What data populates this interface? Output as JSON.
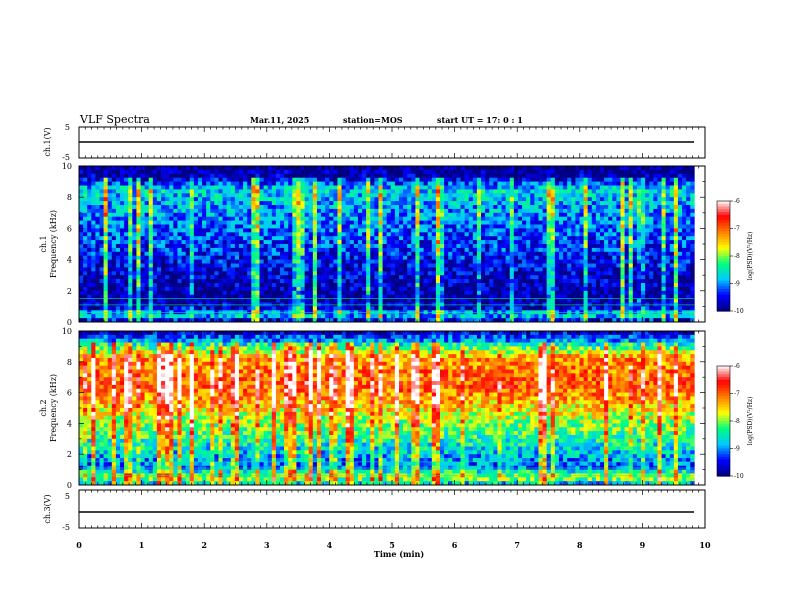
{
  "header": {
    "title": "VLF Spectra",
    "date": "Mar.11, 2025",
    "station": "station=MOS",
    "start": "start UT = 17: 0 : 1"
  },
  "chart_data": [
    {
      "type": "line",
      "title": "",
      "ylabel": "ch.1(V)",
      "yticks": [
        "5",
        "-5"
      ],
      "ylim": [
        -5,
        5
      ],
      "series": [
        {
          "x": [
            0,
            9.83
          ],
          "y": [
            0,
            0
          ]
        }
      ]
    },
    {
      "type": "heatmap",
      "ylabel": "ch.1\nFrequency (kHz)",
      "ylabel_channel": "ch.1",
      "ylabel_freq": "Frequency (kHz)",
      "yticks": [
        "0",
        "2",
        "4",
        "6",
        "8",
        "10"
      ],
      "ylim": [
        0,
        10
      ],
      "xlim": [
        0,
        10
      ],
      "data_end_min": 9.83,
      "colorbar": {
        "label": "log(PSD)(V²/Hz)",
        "ticks": [
          "-6",
          "-7",
          "-8",
          "-9",
          "-10"
        ],
        "range": [
          -10,
          -6
        ]
      },
      "intensity_profile": [
        {
          "f": 0.0,
          "level": -9.8
        },
        {
          "f": 0.5,
          "level": -8.6
        },
        {
          "f": 0.8,
          "level": -9.6
        },
        {
          "f": 1.5,
          "level": -9.9
        },
        {
          "f": 3.0,
          "level": -9.7
        },
        {
          "f": 5.0,
          "level": -9.3
        },
        {
          "f": 7.0,
          "level": -9.0
        },
        {
          "f": 8.5,
          "level": -8.7
        },
        {
          "f": 9.3,
          "level": -9.8
        },
        {
          "f": 10.0,
          "level": -10
        }
      ]
    },
    {
      "type": "heatmap",
      "ylabel": "ch.2\nFrequency (kHz)",
      "ylabel_channel": "ch.2",
      "ylabel_freq": "Frequency (kHz)",
      "yticks": [
        "0",
        "2",
        "4",
        "6",
        "8",
        "10"
      ],
      "ylim": [
        0,
        10
      ],
      "xlim": [
        0,
        10
      ],
      "data_end_min": 9.83,
      "colorbar": {
        "label": "log(PSD)(V²/Hz)",
        "ticks": [
          "-6",
          "-7",
          "-8",
          "-9",
          "-10"
        ],
        "range": [
          -10,
          -6
        ]
      },
      "intensity_profile": [
        {
          "f": 0.0,
          "level": -9.0
        },
        {
          "f": 0.5,
          "level": -7.8
        },
        {
          "f": 1.2,
          "level": -9.2
        },
        {
          "f": 2.0,
          "level": -8.8
        },
        {
          "f": 4.0,
          "level": -8.0
        },
        {
          "f": 6.5,
          "level": -6.9
        },
        {
          "f": 8.3,
          "level": -7.3
        },
        {
          "f": 9.3,
          "level": -8.8
        },
        {
          "f": 10.0,
          "level": -9.8
        }
      ]
    },
    {
      "type": "line",
      "ylabel": "ch.3(V)",
      "yticks": [
        "5",
        "-5"
      ],
      "ylim": [
        -5,
        5
      ],
      "xlabel": "Time (min)",
      "xticks": [
        "0",
        "1",
        "2",
        "3",
        "4",
        "5",
        "6",
        "7",
        "8",
        "9",
        "10"
      ],
      "xlim": [
        0,
        10
      ],
      "series": [
        {
          "x": [
            0,
            9.83
          ],
          "y": [
            -2,
            -2
          ]
        }
      ]
    }
  ],
  "colors": {
    "background": "#ffffff",
    "axis": "#000000",
    "colormap": [
      "#000080",
      "#0000ff",
      "#00c8ff",
      "#00ff80",
      "#ffff00",
      "#ff8000",
      "#ff0000",
      "#ffffff"
    ]
  }
}
